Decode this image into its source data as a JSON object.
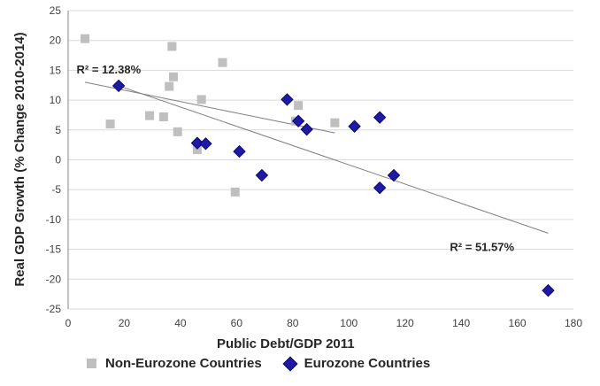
{
  "chart_data": {
    "type": "scatter",
    "xlabel": "Public Debt/GDP 2011",
    "ylabel": "Real GDP Growth (% Change 2010-2014)",
    "xlim": [
      0,
      180
    ],
    "ylim": [
      -25,
      25
    ],
    "x_ticks": [
      "0",
      "20",
      "40",
      "60",
      "80",
      "100",
      "120",
      "140",
      "160",
      "180"
    ],
    "y_ticks": [
      "25",
      "20",
      "15",
      "10",
      "5",
      "0",
      "-5",
      "-10",
      "-15",
      "-20",
      "-25"
    ],
    "grid": "horizontal",
    "legend_position": "bottom",
    "series": [
      {
        "name": "Non-Eurozone Countries",
        "marker": "square",
        "color": "#bfbfbf",
        "points": [
          {
            "x": 6,
            "y": 20.3
          },
          {
            "x": 15,
            "y": 6.0
          },
          {
            "x": 29,
            "y": 7.4
          },
          {
            "x": 34,
            "y": 7.2
          },
          {
            "x": 36,
            "y": 12.3
          },
          {
            "x": 37,
            "y": 19.0
          },
          {
            "x": 37.5,
            "y": 13.9
          },
          {
            "x": 39,
            "y": 4.7
          },
          {
            "x": 46,
            "y": 1.7
          },
          {
            "x": 47.5,
            "y": 10.1
          },
          {
            "x": 55,
            "y": 16.3
          },
          {
            "x": 59.5,
            "y": -5.4
          },
          {
            "x": 81,
            "y": 6.5
          },
          {
            "x": 82,
            "y": 9.1
          },
          {
            "x": 95,
            "y": 6.2
          }
        ]
      },
      {
        "name": "Eurozone Countries",
        "marker": "diamond",
        "color": "#1f1aa6",
        "points": [
          {
            "x": 18,
            "y": 12.4
          },
          {
            "x": 46,
            "y": 2.8
          },
          {
            "x": 49,
            "y": 2.7
          },
          {
            "x": 61,
            "y": 1.4
          },
          {
            "x": 69,
            "y": -2.6
          },
          {
            "x": 78,
            "y": 10.1
          },
          {
            "x": 82,
            "y": 6.5
          },
          {
            "x": 85,
            "y": 5.1
          },
          {
            "x": 102,
            "y": 5.6
          },
          {
            "x": 111,
            "y": 7.1
          },
          {
            "x": 111,
            "y": -4.7
          },
          {
            "x": 116,
            "y": -2.6
          },
          {
            "x": 171,
            "y": -21.9
          }
        ]
      }
    ],
    "trendlines": [
      {
        "series": "Non-Eurozone Countries",
        "x": [
          6,
          95
        ],
        "y": [
          13.0,
          4.5
        ]
      },
      {
        "series": "Eurozone Countries",
        "x": [
          18,
          171
        ],
        "y": [
          12.4,
          -12.3
        ]
      }
    ],
    "annotations": [
      {
        "text": "R² = 12.38%",
        "x": 3,
        "y": 14.5
      },
      {
        "text": "R² = 51.57%",
        "x": 136,
        "y": -15.3
      }
    ]
  }
}
